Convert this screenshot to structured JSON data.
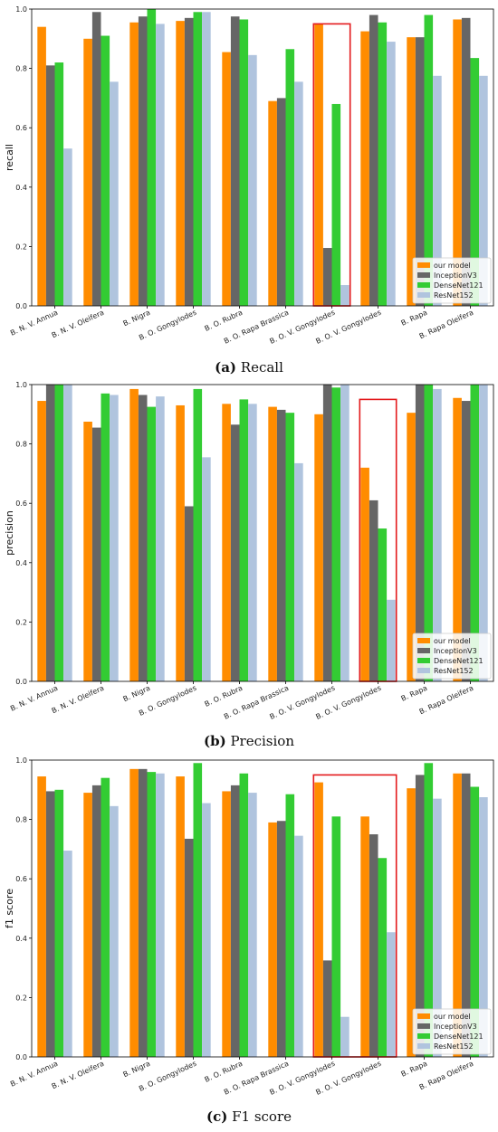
{
  "chart_data": [
    {
      "type": "bar",
      "ylabel": "recall",
      "ylim": [
        0,
        1
      ],
      "yticks": [
        "0.0",
        "0.2",
        "0.4",
        "0.6",
        "0.8",
        "1.0"
      ],
      "categories": [
        "B. N. V. Annua",
        "B. N. V. Oleifera",
        "B. Nigra",
        "B. O. Gongylodes",
        "B. O. Rubra",
        "B. O. Rapa Brassica",
        "B. O. V. Gongylodes",
        "B. O. V. Gongylodes",
        "B. Rapa",
        "B. Rapa Oleifera"
      ],
      "series": [
        {
          "name": "our model",
          "color": "#ff8c00",
          "values": [
            0.94,
            0.9,
            0.955,
            0.96,
            0.855,
            0.69,
            0.95,
            0.925,
            0.905,
            0.965
          ]
        },
        {
          "name": "InceptionV3",
          "color": "#666666",
          "values": [
            0.81,
            0.99,
            0.975,
            0.97,
            0.975,
            0.7,
            0.195,
            0.98,
            0.905,
            0.97
          ]
        },
        {
          "name": "DenseNet121",
          "color": "#33cc33",
          "values": [
            0.82,
            0.91,
            1.0,
            0.99,
            0.965,
            0.865,
            0.68,
            0.955,
            0.98,
            0.835
          ]
        },
        {
          "name": "ResNet152",
          "color": "#b0c4de",
          "values": [
            0.53,
            0.755,
            0.95,
            0.99,
            0.845,
            0.755,
            0.07,
            0.89,
            0.775,
            0.775
          ]
        }
      ],
      "highlight_group": 6,
      "legend_position": "lower right",
      "caption_letter": "(a)",
      "caption_text": "Recall"
    },
    {
      "type": "bar",
      "ylabel": "precision",
      "ylim": [
        0,
        1
      ],
      "yticks": [
        "0.0",
        "0.2",
        "0.4",
        "0.6",
        "0.8",
        "1.0"
      ],
      "categories": [
        "B. N. V. Annua",
        "B. N. V. Oleifera",
        "B. Nigra",
        "B. O. Gongylodes",
        "B. O. Rubra",
        "B. O. Rapa Brassica",
        "B. O. V. Gongylodes",
        "B. O. V. Gongylodes",
        "B. Rapa",
        "B. Rapa Oleifera"
      ],
      "series": [
        {
          "name": "our model",
          "color": "#ff8c00",
          "values": [
            0.945,
            0.875,
            0.985,
            0.93,
            0.935,
            0.925,
            0.9,
            0.72,
            0.905,
            0.955
          ]
        },
        {
          "name": "InceptionV3",
          "color": "#666666",
          "values": [
            1.0,
            0.855,
            0.965,
            0.59,
            0.865,
            0.915,
            1.0,
            0.61,
            1.0,
            0.945
          ]
        },
        {
          "name": "DenseNet121",
          "color": "#33cc33",
          "values": [
            1.0,
            0.97,
            0.925,
            0.985,
            0.95,
            0.905,
            0.99,
            0.515,
            1.0,
            1.0
          ]
        },
        {
          "name": "ResNet152",
          "color": "#b0c4de",
          "values": [
            1.0,
            0.965,
            0.96,
            0.755,
            0.935,
            0.735,
            1.0,
            0.275,
            0.985,
            1.0
          ]
        }
      ],
      "highlight_group": 7,
      "legend_position": "lower right",
      "caption_letter": "(b)",
      "caption_text": "Precision"
    },
    {
      "type": "bar",
      "ylabel": "f1 score",
      "ylim": [
        0,
        1
      ],
      "yticks": [
        "0.0",
        "0.2",
        "0.4",
        "0.6",
        "0.8",
        "1.0"
      ],
      "categories": [
        "B. N. V. Annua",
        "B. N. V. Oleifera",
        "B. Nigra",
        "B. O. Gongylodes",
        "B. O. Rubra",
        "B. O. Rapa Brassica",
        "B. O. V. Gongylodes",
        "B. O. V. Gongylodes",
        "B. Rapa",
        "B. Rapa Oleifera"
      ],
      "series": [
        {
          "name": "our model",
          "color": "#ff8c00",
          "values": [
            0.945,
            0.89,
            0.97,
            0.945,
            0.895,
            0.79,
            0.925,
            0.81,
            0.905,
            0.955
          ]
        },
        {
          "name": "InceptionV3",
          "color": "#666666",
          "values": [
            0.895,
            0.915,
            0.97,
            0.735,
            0.915,
            0.795,
            0.325,
            0.75,
            0.95,
            0.955
          ]
        },
        {
          "name": "DenseNet121",
          "color": "#33cc33",
          "values": [
            0.9,
            0.94,
            0.96,
            0.99,
            0.955,
            0.885,
            0.81,
            0.67,
            0.99,
            0.91
          ]
        },
        {
          "name": "ResNet152",
          "color": "#b0c4de",
          "values": [
            0.695,
            0.845,
            0.955,
            0.855,
            0.89,
            0.745,
            0.135,
            0.42,
            0.87,
            0.875
          ]
        }
      ],
      "highlight_groups": [
        6,
        7
      ],
      "legend_position": "lower right",
      "caption_letter": "(c)",
      "caption_text": "F1 score"
    }
  ]
}
